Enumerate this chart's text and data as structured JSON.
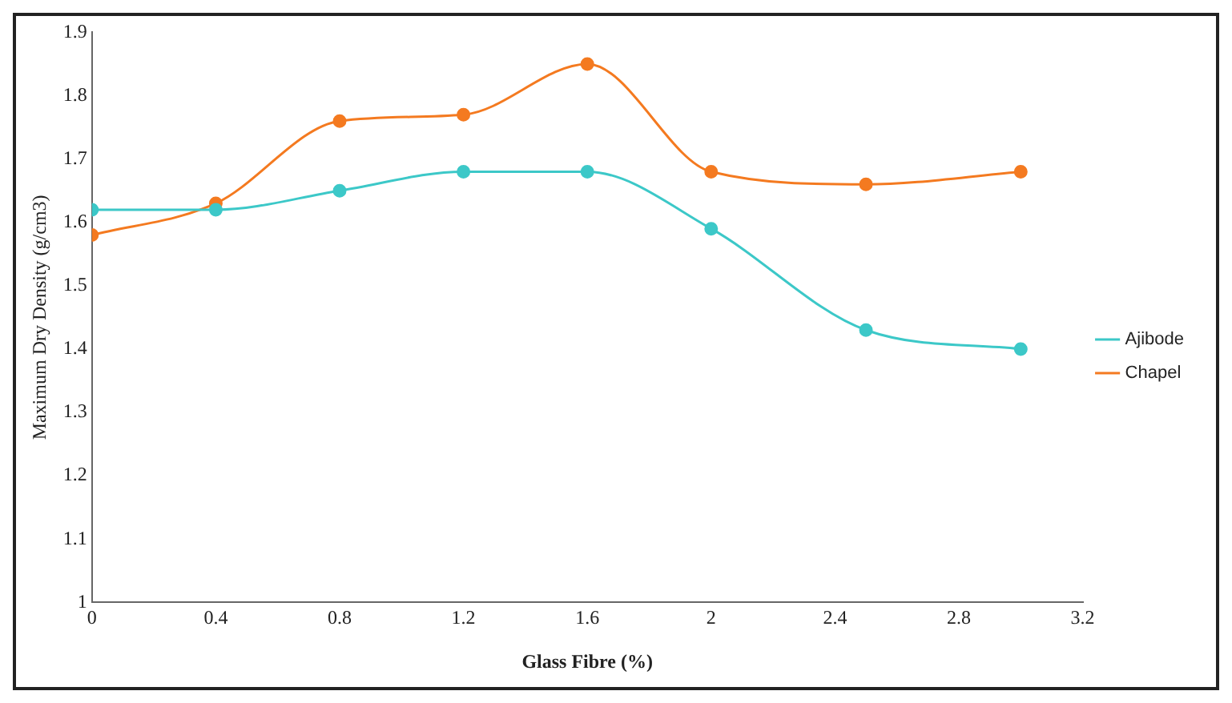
{
  "chart_data": {
    "type": "line",
    "xlabel": "Glass Fibre (%)",
    "ylabel": "Maximum Dry Density (g/cm3)",
    "xlim": [
      0,
      3.2
    ],
    "xticks": [
      0,
      0.4,
      0.8,
      1.2,
      1.6,
      2,
      2.4,
      2.8,
      3.2
    ],
    "ylim": [
      1,
      1.9
    ],
    "yticks": [
      1,
      1.1,
      1.2,
      1.3,
      1.4,
      1.5,
      1.6,
      1.7,
      1.8,
      1.9
    ],
    "grid": false,
    "legend": "right",
    "marker": "circle",
    "line_style": "solid",
    "x": [
      0,
      0.4,
      0.8,
      1.2,
      1.6,
      2,
      2.5,
      3
    ],
    "series": [
      {
        "name": "Ajibode",
        "color": "#3cc8c8",
        "values": [
          1.62,
          1.62,
          1.65,
          1.68,
          1.68,
          1.59,
          1.43,
          1.4
        ]
      },
      {
        "name": "Chapel",
        "color": "#f47a20",
        "values": [
          1.58,
          1.63,
          1.76,
          1.77,
          1.85,
          1.68,
          1.66,
          1.68
        ]
      }
    ]
  }
}
